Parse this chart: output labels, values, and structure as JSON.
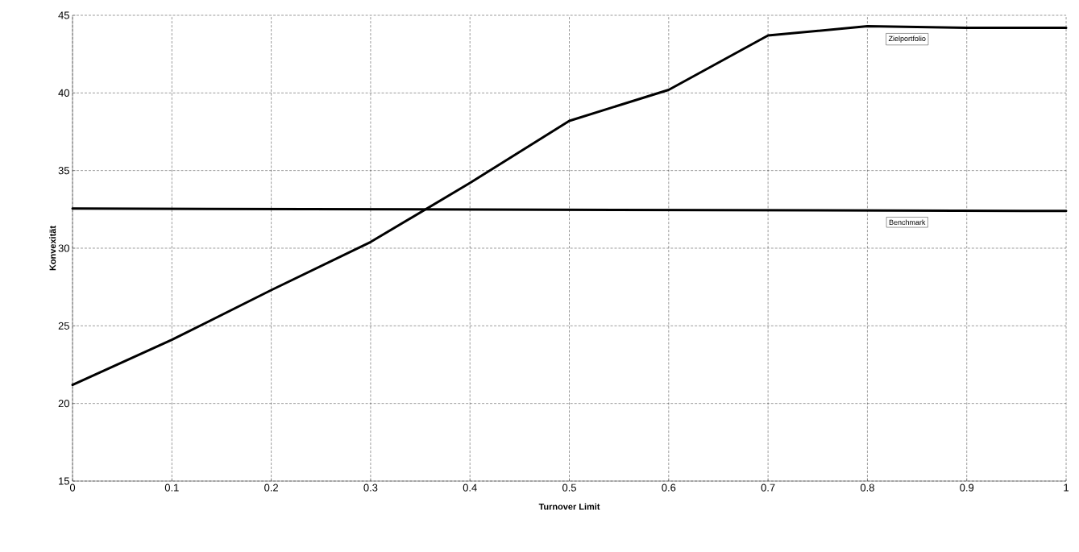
{
  "chart_data": {
    "type": "line",
    "xlabel": "Turnover Limit",
    "ylabel": "Konvexität",
    "xlim": [
      0,
      1
    ],
    "xticks": [
      0,
      0.1,
      0.2,
      0.3,
      0.4,
      0.5,
      0.6,
      0.7,
      0.8,
      0.9,
      1
    ],
    "ylim": [
      15,
      45
    ],
    "yticks": [
      15,
      20,
      25,
      30,
      35,
      40,
      45
    ],
    "grid": true,
    "legend": false,
    "marker": "none",
    "line_style": "solid",
    "series": [
      {
        "name": "Zielportfolio",
        "color": "#000000",
        "x": [
          0,
          0.1,
          0.2,
          0.3,
          0.4,
          0.5,
          0.6,
          0.7,
          0.8,
          0.9,
          1
        ],
        "values": [
          21.2,
          24.1,
          27.3,
          30.4,
          34.2,
          38.2,
          40.2,
          43.7,
          44.3,
          44.2,
          44.2
        ]
      },
      {
        "name": "Benchmark",
        "color": "#000000",
        "x": [
          0,
          1
        ],
        "values": [
          32.55,
          32.4
        ]
      }
    ]
  }
}
